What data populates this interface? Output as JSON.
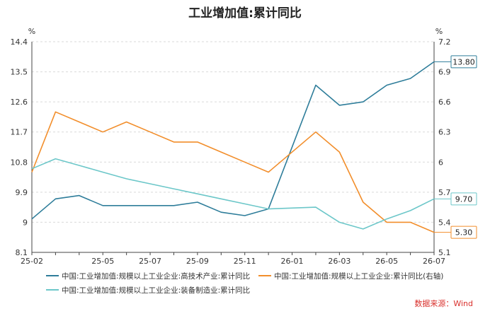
{
  "chart_data": {
    "type": "line",
    "title": "工业增加值:累计同比",
    "source": "数据来源：Wind",
    "y_left": {
      "unit": "%",
      "ylim": [
        8.1,
        14.4
      ],
      "ticks": [
        "14.4",
        "13.5",
        "12.6",
        "11.7",
        "10.8",
        "9.9",
        "9",
        "8.1"
      ]
    },
    "y_right": {
      "unit": "%",
      "ylim": [
        5.1,
        7.2
      ],
      "ticks": [
        "7.2",
        "6.9",
        "6.6",
        "6.3",
        "6",
        "5.7",
        "5.4",
        "5.1"
      ]
    },
    "x_ticks": [
      "25-02",
      "25-05",
      "25-07",
      "25-09",
      "25-11",
      "26-01",
      "26-03",
      "26-05",
      "26-07"
    ],
    "x": [
      "25-02",
      "25-03",
      "25-04",
      "25-05",
      "25-06",
      "25-07",
      "25-08",
      "25-09",
      "25-10",
      "25-11",
      "25-12",
      "26-01",
      "26-02",
      "26-03",
      "26-04",
      "26-05",
      "26-06",
      "26-07"
    ],
    "grid": true,
    "legend_position": "bottom",
    "series": [
      {
        "name": "中国:工业增加值:规模以上工业企业:高技术产业:累计同比",
        "axis": "left",
        "color": "#2e7d9a",
        "values": [
          9.1,
          9.7,
          9.8,
          9.5,
          9.5,
          9.5,
          9.5,
          9.6,
          9.3,
          9.2,
          9.4,
          null,
          13.1,
          12.5,
          12.6,
          13.1,
          13.3,
          13.8
        ],
        "end_label": "13.80"
      },
      {
        "name": "中国:工业增加值:规模以上工业企业:累计同比(右轴)",
        "axis": "right",
        "color": "#f28e2b",
        "values": [
          5.9,
          6.5,
          6.4,
          6.3,
          6.4,
          6.3,
          6.2,
          6.2,
          6.1,
          6.0,
          5.9,
          null,
          6.3,
          6.1,
          5.6,
          5.4,
          5.4,
          5.3
        ],
        "end_label": "5.30"
      },
      {
        "name": "中国:工业增加值:规模以上工业企业:装备制造业:累计同比",
        "axis": "left",
        "color": "#6cc7c9",
        "values": [
          10.6,
          10.9,
          10.7,
          10.5,
          10.3,
          10.15,
          10.0,
          9.85,
          9.7,
          9.55,
          9.4,
          null,
          9.45,
          9.0,
          8.8,
          9.1,
          9.35,
          9.7
        ],
        "end_label": "9.70"
      }
    ]
  }
}
